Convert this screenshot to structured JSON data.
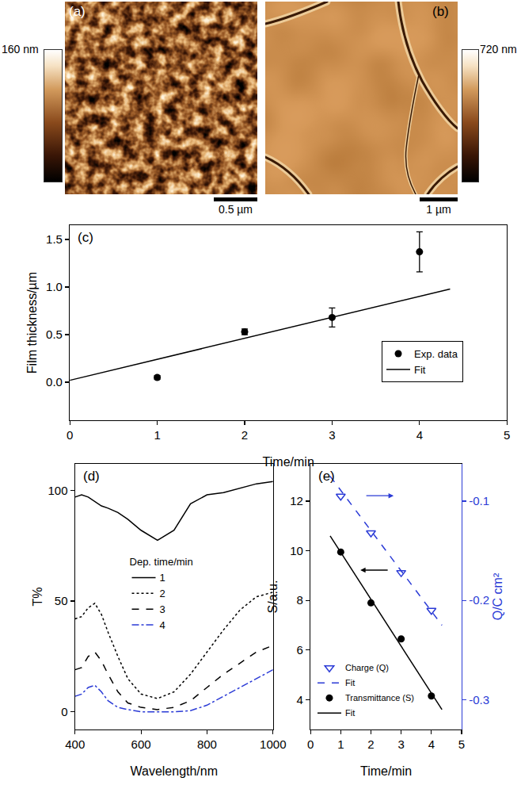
{
  "images": [
    {
      "panel": "(a)",
      "colorbar_label": "160 nm",
      "scale_bar": "0.5 µm"
    },
    {
      "panel": "(b)",
      "colorbar_label": "720 nm",
      "scale_bar": "1 µm"
    }
  ],
  "chart_data": [
    {
      "panel": "(c)",
      "type": "scatter",
      "x_label": "Time/min",
      "y_label": "Film thickness/µm",
      "xlim": [
        0,
        5
      ],
      "xticks": [
        0,
        1,
        2,
        3,
        4,
        5
      ],
      "ylim": [
        -0.4,
        1.65
      ],
      "yticks": [
        {
          "value": 0,
          "label": "0.0"
        },
        {
          "value": 0.5,
          "label": "0.5"
        },
        {
          "value": 1,
          "label": "1.0"
        },
        {
          "value": 1.5,
          "label": "1.5"
        }
      ],
      "grid": false,
      "legend": "lower right",
      "series": [
        {
          "name": "Exp. data",
          "type": "scatter",
          "marker": "circle",
          "color": "#000000",
          "x": [
            1,
            2,
            3,
            4
          ],
          "values": [
            0.05,
            0.53,
            0.68,
            1.37
          ],
          "error": [
            0.02,
            0.03,
            0.1,
            0.21
          ]
        },
        {
          "name": "Fit",
          "type": "line",
          "line_style": "solid",
          "color": "#000000",
          "x": [
            0,
            4.35
          ],
          "values": [
            0.02,
            0.98
          ]
        }
      ]
    },
    {
      "panel": "(d)",
      "type": "line",
      "x_label": "Wavelength/nm",
      "y_label": "T%",
      "xlim": [
        400,
        1000
      ],
      "xticks": [
        400,
        600,
        800,
        1000
      ],
      "ylim": [
        -8,
        112
      ],
      "yticks": [
        0,
        50,
        100
      ],
      "grid": false,
      "legend": "center",
      "legend_title": "Dep. time/min",
      "x": [
        400,
        420,
        440,
        460,
        480,
        500,
        530,
        560,
        600,
        650,
        700,
        750,
        800,
        850,
        900,
        950,
        1000
      ],
      "series": [
        {
          "name": "1",
          "line_style": "solid",
          "color": "#000000",
          "values": [
            97,
            98,
            97,
            95,
            93,
            92,
            90,
            87,
            82,
            77.5,
            82,
            94,
            98,
            99,
            101,
            103,
            104
          ]
        },
        {
          "name": "2",
          "line_style": "dot",
          "color": "#000000",
          "values": [
            42,
            43,
            47,
            49,
            44,
            36,
            25,
            15,
            8,
            6,
            9,
            17,
            27,
            37,
            46,
            52,
            54
          ]
        },
        {
          "name": "3",
          "line_style": "dash",
          "color": "#000000",
          "values": [
            19,
            20,
            25,
            27,
            23,
            17,
            9,
            4,
            2,
            1,
            2,
            5,
            11,
            17,
            22,
            27,
            30
          ]
        },
        {
          "name": "4",
          "line_style": "dashdot",
          "color": "#2b3bd6",
          "values": [
            7,
            8,
            11,
            12,
            9,
            5,
            2,
            1,
            0,
            0,
            0,
            0.5,
            3,
            7,
            11,
            15,
            19
          ]
        }
      ]
    },
    {
      "panel": "(e)",
      "type": "scatter",
      "x_label": "Time/min",
      "y_label": "S/a.u.",
      "y2_label": "Q/C cm²",
      "xlim": [
        0,
        5
      ],
      "xticks": [
        0,
        1,
        2,
        3,
        4,
        5
      ],
      "ylim": [
        2.8,
        13.5
      ],
      "yticks": [
        4,
        6,
        8,
        10,
        12
      ],
      "y2lim": [
        -0.33,
        -0.0625
      ],
      "y2ticks": [
        -0.3,
        -0.2,
        -0.1
      ],
      "grid": false,
      "legend": "lower left",
      "series": [
        {
          "name": "Charge (Q)",
          "axis": "y2",
          "type": "scatter",
          "marker": "triangle-down-open",
          "color": "#2b3bd6",
          "x": [
            1,
            2,
            3,
            4
          ],
          "values": [
            -0.095,
            -0.132,
            -0.172,
            -0.21
          ]
        },
        {
          "name": "Fit",
          "axis": "y2",
          "type": "line",
          "line_style": "dash",
          "color": "#2b3bd6",
          "x": [
            0.65,
            4.35
          ],
          "values": [
            -0.075,
            -0.225
          ]
        },
        {
          "name": "Transmittance (S)",
          "type": "scatter",
          "marker": "circle",
          "color": "#000000",
          "x": [
            1,
            2,
            3,
            4
          ],
          "values": [
            9.95,
            7.9,
            6.45,
            4.15
          ]
        },
        {
          "name": "Fit",
          "type": "line",
          "line_style": "solid",
          "color": "#000000",
          "x": [
            0.65,
            4.35
          ],
          "values": [
            10.6,
            3.6
          ]
        }
      ]
    }
  ]
}
